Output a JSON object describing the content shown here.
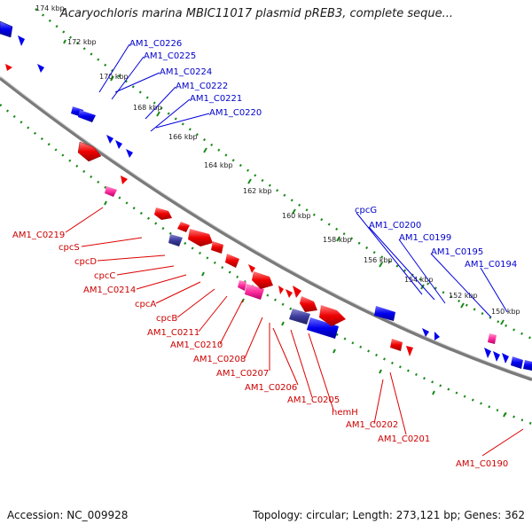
{
  "title": "Acaryochloris marina MBIC11017 plasmid pREB3, complete seque...",
  "footer": {
    "accession": "Accession: NC_009928",
    "summary": "Topology: circular; Length: 273,121 bp; Genes: 362"
  },
  "colors": {
    "plus_strand": "#0000ff",
    "minus_strand": "#ff0000",
    "rna": "#ff33aa",
    "pseudo": "#333399",
    "backbone": "#808080",
    "tick_ring": "#1a8a1a"
  },
  "kbp_ticks": [
    "174 kbp",
    "172 kbp",
    "170 kbp",
    "168 kbp",
    "166 kbp",
    "164 kbp",
    "162 kbp",
    "160 kbp",
    "158 kbp",
    "156 kbp",
    "154 kbp",
    "152 kbp",
    "150 kbp"
  ],
  "plus_labels": [
    "AM1_C0226",
    "AM1_C0225",
    "AM1_C0224",
    "AM1_C0222",
    "AM1_C0221",
    "AM1_C0220",
    "cpcG",
    "AM1_C0200",
    "AM1_C0199",
    "AM1_C0195",
    "AM1_C0194"
  ],
  "minus_labels": [
    "AM1_C0219",
    "cpcS",
    "cpcD",
    "cpcC",
    "AM1_C0214",
    "cpcA",
    "cpcB",
    "AM1_C0211",
    "AM1_C0210",
    "AM1_C0208",
    "AM1_C0207",
    "AM1_C0206",
    "AM1_C0205",
    "hemH",
    "AM1_C0202",
    "AM1_C0201",
    "AM1_C0190"
  ]
}
